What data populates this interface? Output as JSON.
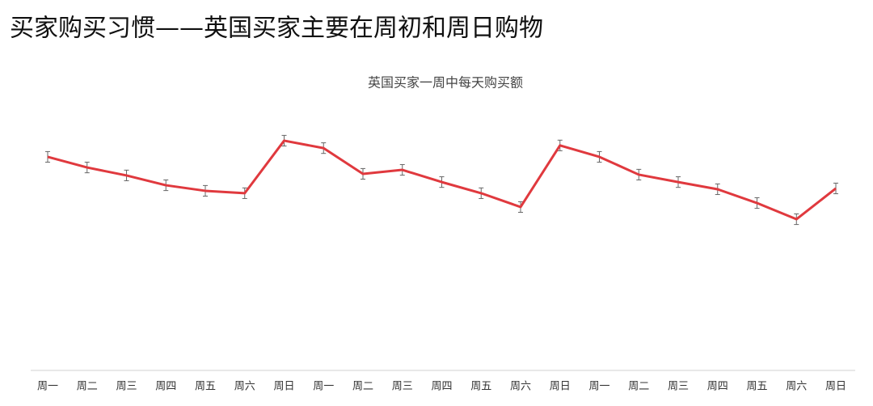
{
  "page_title": "买家购买习惯——英国买家主要在周初和周日购物",
  "chart_data": {
    "type": "line",
    "title": "英国买家一周中每天购买额",
    "categories": [
      "周一",
      "周二",
      "周三",
      "周四",
      "周五",
      "周六",
      "周日",
      "周一",
      "周二",
      "周三",
      "周四",
      "周五",
      "周六",
      "周日",
      "周一",
      "周二",
      "周三",
      "周四",
      "周五",
      "周六",
      "周日"
    ],
    "series": [
      {
        "color": "#e0393e",
        "values": [
          80.5,
          76.5,
          73.5,
          69.8,
          67.7,
          66.8,
          86.6,
          83.8,
          74.1,
          75.6,
          71.0,
          66.8,
          61.6,
          84.8,
          80.5,
          73.8,
          71.0,
          68.3,
          63.1,
          57.0,
          68.6
        ],
        "errors": [
          2,
          2,
          2,
          2,
          2,
          2,
          2,
          2,
          2,
          2,
          2,
          2,
          2,
          2,
          2,
          2,
          2,
          2,
          2,
          2,
          2
        ]
      }
    ],
    "ylim": [
      0,
      100
    ]
  }
}
